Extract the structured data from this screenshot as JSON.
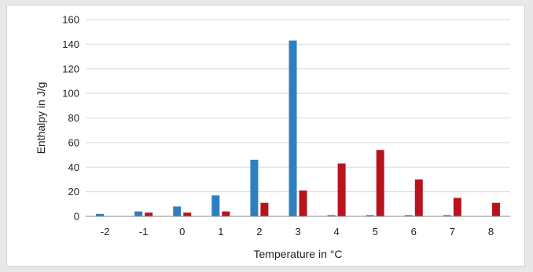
{
  "chart_data": {
    "type": "bar",
    "title": "",
    "xlabel": "Temperature in °C",
    "ylabel": "Enthalpy in J/g",
    "categories": [
      "-2",
      "-1",
      "0",
      "1",
      "2",
      "3",
      "4",
      "5",
      "6",
      "7",
      "8"
    ],
    "ylim": [
      0,
      160
    ],
    "yticks": [
      0,
      20,
      40,
      60,
      80,
      100,
      120,
      140,
      160
    ],
    "grid": true,
    "legend": "none",
    "series": [
      {
        "color": "#2e7fbf",
        "values": [
          2,
          4,
          8,
          17,
          46,
          143,
          1,
          1,
          1,
          1,
          0
        ]
      },
      {
        "color": "#b8141e",
        "values": [
          0,
          3,
          3,
          4,
          11,
          21,
          43,
          54,
          30,
          15,
          11
        ]
      }
    ]
  }
}
